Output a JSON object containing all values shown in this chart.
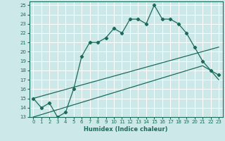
{
  "xlabel": "Humidex (Indice chaleur)",
  "bg_color": "#cce8e8",
  "line_color": "#1a6b5a",
  "grid_color": "#ffffff",
  "xlim": [
    -0.5,
    23.5
  ],
  "ylim": [
    13,
    25.4
  ],
  "yticks": [
    13,
    14,
    15,
    16,
    17,
    18,
    19,
    20,
    21,
    22,
    23,
    24,
    25
  ],
  "xticks": [
    0,
    1,
    2,
    3,
    4,
    5,
    6,
    7,
    8,
    9,
    10,
    11,
    12,
    13,
    14,
    15,
    16,
    17,
    18,
    19,
    20,
    21,
    22,
    23
  ],
  "series1_x": [
    0,
    1,
    2,
    3,
    4,
    5,
    6,
    7,
    8,
    9,
    10,
    11,
    12,
    13,
    14,
    15,
    16,
    17,
    18,
    19,
    20,
    21,
    22,
    23
  ],
  "series1_y": [
    15,
    14,
    14.5,
    13,
    13.5,
    16,
    19.5,
    21,
    21,
    21.5,
    22.5,
    22,
    23.5,
    23.5,
    23,
    25,
    23.5,
    23.5,
    23,
    22,
    20.5,
    19,
    18,
    17.5
  ],
  "series2_x": [
    0,
    23
  ],
  "series2_y": [
    15,
    20.5
  ],
  "series3_x": [
    0,
    21,
    22,
    23
  ],
  "series3_y": [
    13,
    18.5,
    18,
    17
  ]
}
